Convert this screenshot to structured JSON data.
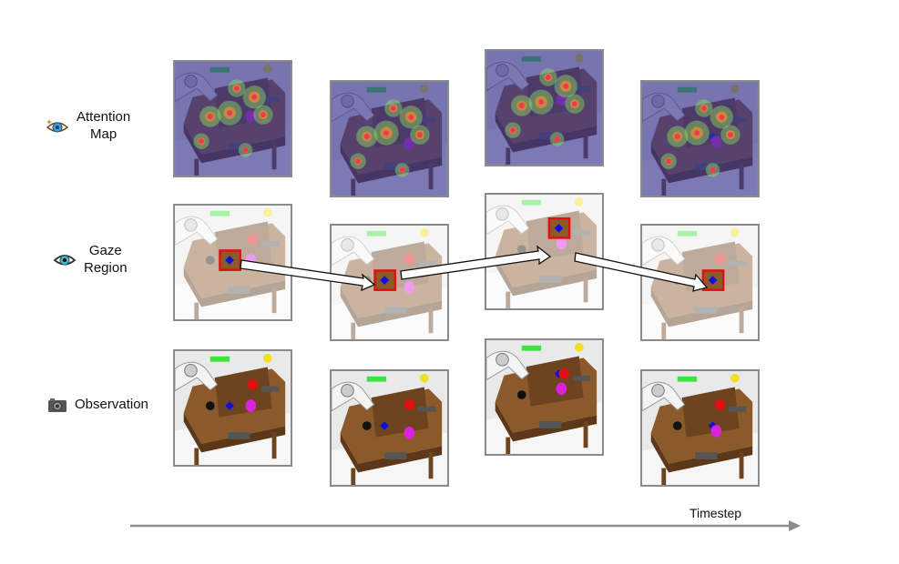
{
  "rows": [
    {
      "label_line1": "Attention",
      "label_line2": "Map",
      "icon": "sparkle-eye-icon",
      "variant": "attention"
    },
    {
      "label_line1": "Gaze",
      "label_line2": "Region",
      "icon": "eye-icon",
      "variant": "gaze"
    },
    {
      "label_line1": "Observation",
      "label_line2": "",
      "icon": "camera-icon",
      "variant": "observation"
    }
  ],
  "axis": {
    "label": "Timestep",
    "color": "#8c8c8c"
  },
  "timesteps": 4,
  "colors": {
    "gaze_box": "#e01010",
    "panel_border": "#8a8a8a",
    "table": "#8b5a2b",
    "attention_base": "#3a3590"
  }
}
